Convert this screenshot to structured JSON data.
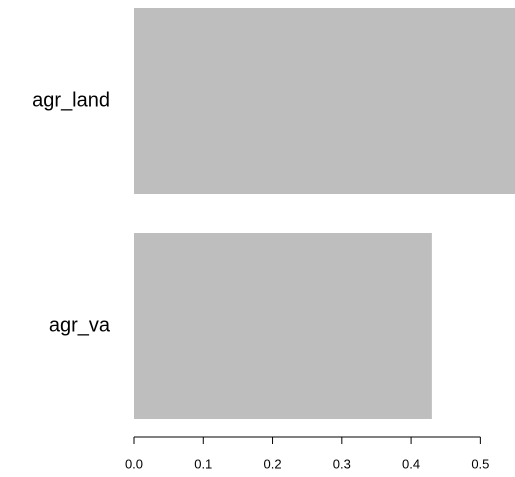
{
  "chart_data": {
    "type": "barh",
    "categories": [
      "agr_land",
      "agr_va"
    ],
    "values": [
      0.55,
      0.43
    ],
    "color": "#bebebe",
    "xlim": [
      0,
      0.55
    ],
    "xticks": [
      {
        "value": 0,
        "label": "0.0"
      },
      0.1,
      0.2,
      0.3,
      0.4,
      0.5
    ]
  }
}
